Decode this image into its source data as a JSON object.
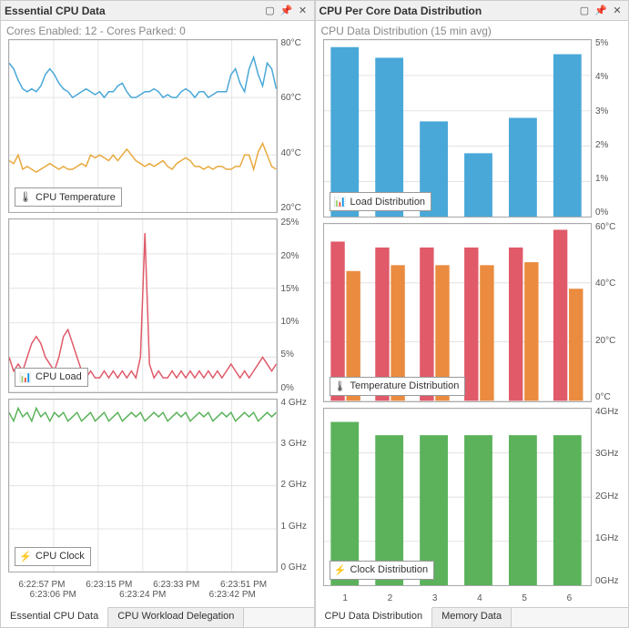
{
  "left": {
    "title": "Essential CPU Data",
    "subtitle": "Cores Enabled: 12 - Cores Parked: 0",
    "temp": {
      "legend": "CPU Temperature",
      "icon": "🌡",
      "ymin": 20,
      "ymax": 80,
      "ystep": 20,
      "yunit": "°C",
      "series": [
        {
          "color": "#49a8d8",
          "values": [
            72,
            70,
            66,
            63,
            62,
            63,
            62,
            64,
            68,
            70,
            68,
            65,
            63,
            62,
            60,
            61,
            62,
            63,
            62,
            61,
            62,
            60,
            62,
            62,
            64,
            65,
            62,
            60,
            60,
            61,
            62,
            62,
            63,
            62,
            60,
            61,
            60,
            60,
            62,
            63,
            62,
            60,
            62,
            62,
            60,
            61,
            62,
            62,
            62,
            68,
            70,
            65,
            62,
            70,
            74,
            68,
            64,
            72,
            70,
            63
          ]
        },
        {
          "color": "#e8a93e",
          "values": [
            38,
            37,
            40,
            35,
            36,
            35,
            34,
            35,
            36,
            37,
            36,
            35,
            36,
            35,
            35,
            36,
            37,
            36,
            40,
            39,
            40,
            39,
            38,
            40,
            38,
            40,
            42,
            40,
            38,
            37,
            36,
            37,
            36,
            37,
            38,
            36,
            35,
            37,
            38,
            39,
            38,
            36,
            36,
            35,
            36,
            35,
            36,
            36,
            35,
            35,
            36,
            36,
            40,
            40,
            35,
            41,
            44,
            40,
            36,
            35
          ]
        }
      ]
    },
    "load": {
      "legend": "CPU Load",
      "icon": "📊",
      "ymin": 0,
      "ymax": 25,
      "ystep": 5,
      "yunit": "%",
      "series": [
        {
          "color": "#e05a6a",
          "values": [
            5,
            3,
            4,
            3,
            5,
            7,
            8,
            7,
            5,
            4,
            3,
            5,
            8,
            9,
            7,
            5,
            3,
            2,
            3,
            2,
            2,
            3,
            2,
            3,
            2,
            3,
            2,
            3,
            2,
            5,
            23,
            4,
            2,
            3,
            2,
            2,
            3,
            2,
            3,
            2,
            3,
            2,
            3,
            2,
            3,
            2,
            3,
            2,
            3,
            4,
            3,
            2,
            3,
            2,
            3,
            4,
            5,
            4,
            3,
            4
          ]
        }
      ]
    },
    "clock": {
      "legend": "CPU Clock",
      "icon": "⚡",
      "ymin": 0,
      "ymax": 4,
      "ystep": 1,
      "yunit": " GHz",
      "series": [
        {
          "color": "#5bb25b",
          "values": [
            3.7,
            3.5,
            3.8,
            3.6,
            3.7,
            3.5,
            3.8,
            3.6,
            3.7,
            3.5,
            3.7,
            3.6,
            3.7,
            3.5,
            3.6,
            3.7,
            3.5,
            3.6,
            3.7,
            3.5,
            3.6,
            3.7,
            3.5,
            3.6,
            3.7,
            3.5,
            3.6,
            3.7,
            3.6,
            3.7,
            3.5,
            3.6,
            3.7,
            3.6,
            3.7,
            3.5,
            3.6,
            3.7,
            3.6,
            3.7,
            3.5,
            3.6,
            3.7,
            3.6,
            3.7,
            3.5,
            3.6,
            3.7,
            3.6,
            3.7,
            3.5,
            3.6,
            3.7,
            3.6,
            3.7,
            3.5,
            3.6,
            3.7,
            3.6,
            3.7
          ]
        }
      ]
    },
    "x_row1": [
      "6:22:57 PM",
      "6:23:15 PM",
      "6:23:33 PM",
      "6:23:51 PM"
    ],
    "x_row2": [
      "6:23:06 PM",
      "6:23:24 PM",
      "6:23:42 PM"
    ],
    "tabs": [
      "Essential CPU Data",
      "CPU Workload Delegation"
    ],
    "active_tab": 0
  },
  "right": {
    "title": "CPU Per Core Data Distribution",
    "subtitle": "CPU Data Distribution (15 min avg)",
    "categories": [
      "1",
      "2",
      "3",
      "4",
      "5",
      "6"
    ],
    "loadDist": {
      "legend": "Load Distribution",
      "icon": "📊",
      "ymin": 0,
      "ymax": 5,
      "ystep": 1,
      "yunit": "%",
      "bars": [
        {
          "color": "#49a8d8",
          "values": [
            4.8,
            4.5,
            2.7,
            1.8,
            2.8,
            4.6
          ]
        }
      ]
    },
    "tempDist": {
      "legend": "Temperature Distribution",
      "icon": "🌡",
      "ymin": 0,
      "ymax": 60,
      "ystep": 20,
      "yunit": "°C",
      "bars": [
        {
          "color": "#e05a6a",
          "values": [
            54,
            52,
            52,
            52,
            52,
            58
          ]
        },
        {
          "color": "#ea8b3f",
          "values": [
            44,
            46,
            46,
            46,
            47,
            38
          ]
        }
      ]
    },
    "clockDist": {
      "legend": "Clock Distribution",
      "icon": "⚡",
      "ymin": 0,
      "ymax": 4,
      "ystep": 1,
      "yunit": "GHz",
      "bars": [
        {
          "color": "#5bb25b",
          "values": [
            3.7,
            3.4,
            3.4,
            3.4,
            3.4,
            3.4
          ]
        }
      ]
    },
    "tabs": [
      "CPU Data Distribution",
      "Memory Data"
    ],
    "active_tab": 0
  }
}
